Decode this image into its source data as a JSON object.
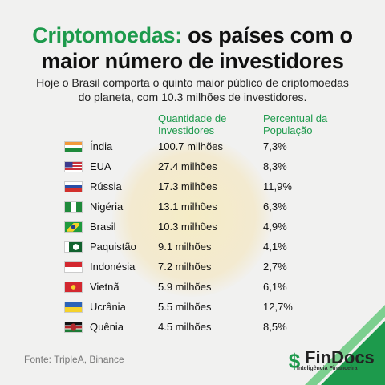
{
  "header": {
    "title_highlight": "Criptomoedas:",
    "title_rest": "os países com o maior número de investidores",
    "subtitle": "Hoje o Brasil comporta o quinto maior público de criptomoedas do planeta, com 10.3 milhões de investidores."
  },
  "table": {
    "headers": [
      "Quantidade de Investidores",
      "Percentual da População"
    ],
    "rows": [
      [
        "Índia",
        "100.7 milhões",
        "7,3%"
      ],
      [
        "EUA",
        "27.4 milhões",
        "8,3%"
      ],
      [
        "Rússia",
        "17.3 milhões",
        "11,9%"
      ],
      [
        "Nigéria",
        "13.1 milhões",
        "6,3%"
      ],
      [
        "Brasil",
        "10.3 milhões",
        "4,9%"
      ],
      [
        "Paquistão",
        "9.1 milhões",
        "4,1%"
      ],
      [
        "Indonésia",
        "7.2 milhões",
        "2,7%"
      ],
      [
        "Vietnã",
        "5.9 milhões",
        "6,1%"
      ],
      [
        "Ucrânia",
        "5.5 milhões",
        "12,7%"
      ],
      [
        "Quênia",
        "4.5 milhões",
        "8,5%"
      ]
    ]
  },
  "footer": {
    "source": "Fonte: TripleA, Binance",
    "logo": "FinDocs",
    "logo_tagline": "Inteligência Financeira"
  }
}
